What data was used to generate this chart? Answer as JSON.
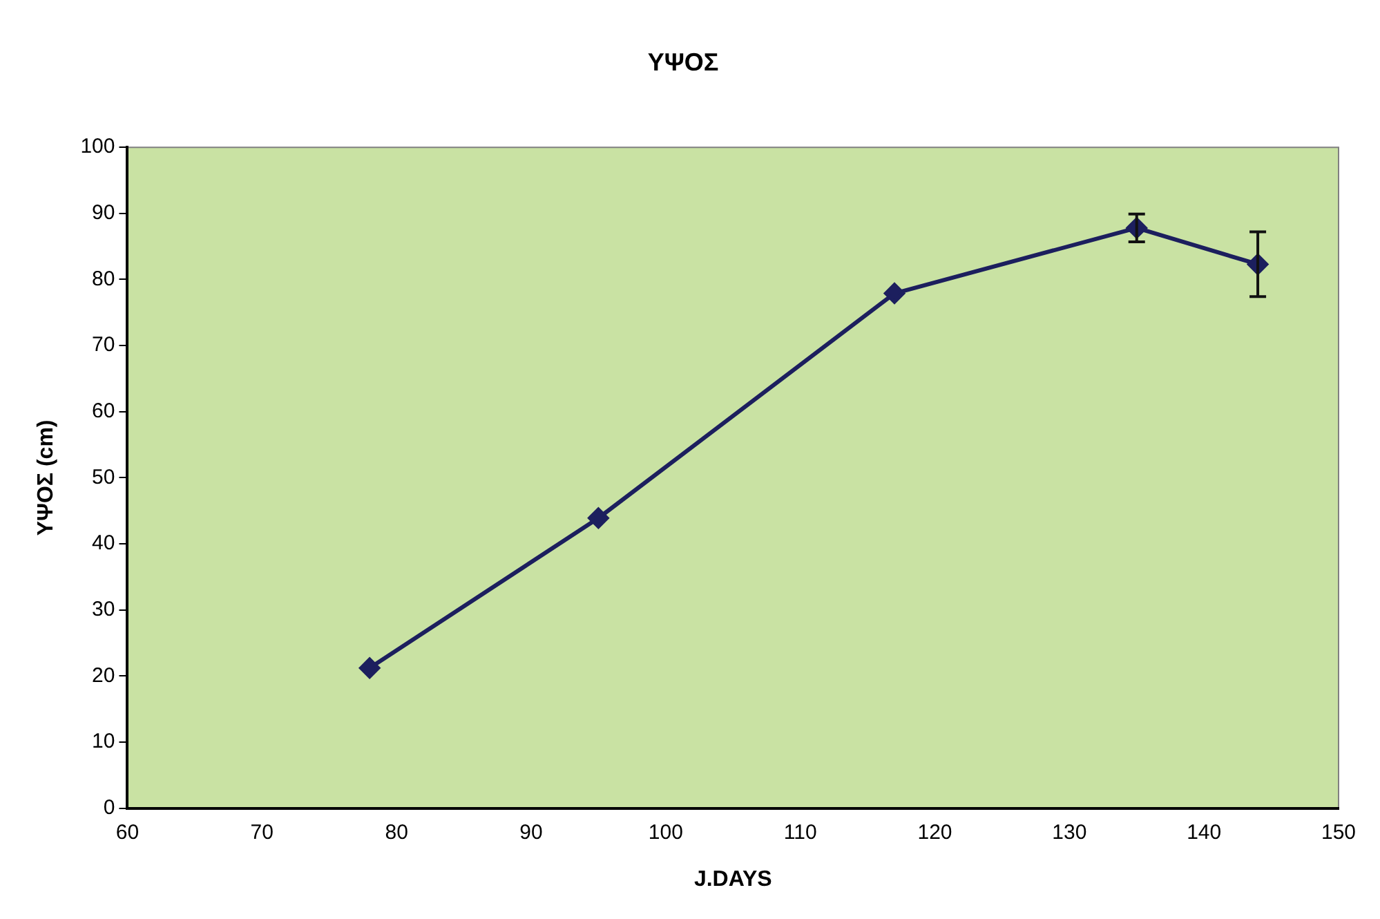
{
  "chart_data": {
    "type": "line",
    "title": "ΥΨΟΣ",
    "xlabel": "J.DAYS",
    "ylabel": "ΥΨΟΣ (cm)",
    "x": [
      78,
      95,
      117,
      135,
      144
    ],
    "series": [
      {
        "color": "#1c1f5e",
        "values": [
          21.2,
          43.9,
          77.9,
          87.8,
          82.3
        ],
        "errors": [
          null,
          null,
          null,
          2.1,
          4.9
        ]
      }
    ],
    "xlim": [
      60,
      150
    ],
    "xticks": [
      60,
      70,
      80,
      90,
      100,
      110,
      120,
      130,
      140,
      150
    ],
    "ylim": [
      0,
      100
    ],
    "yticks": [
      0,
      10,
      20,
      30,
      40,
      50,
      60,
      70,
      80,
      90,
      100
    ],
    "grid": false,
    "legend": false,
    "marker": "diamond",
    "line_style": "solid"
  }
}
